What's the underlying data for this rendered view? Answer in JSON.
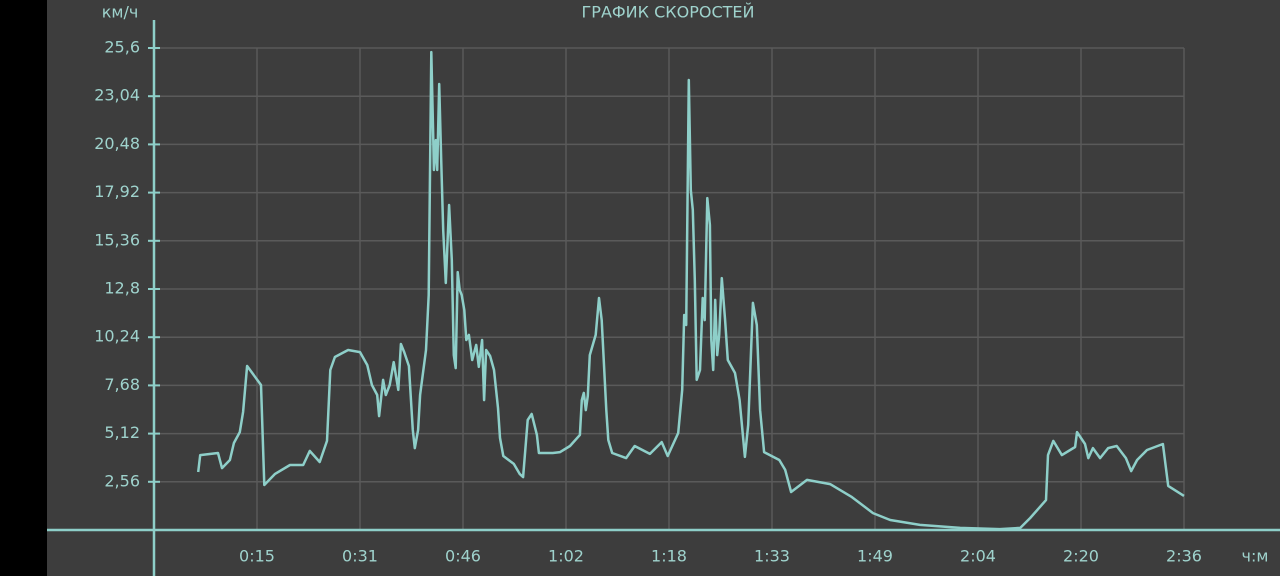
{
  "chart_data": {
    "type": "line",
    "title": "ГРАФИК СКОРОСТЕЙ",
    "y_label": "км/ч",
    "x_label": "ч:м",
    "color": "#8ecfc9",
    "grid": true,
    "xlim": [
      0,
      156
    ],
    "ylim": [
      0,
      25.6
    ],
    "xticks": [
      {
        "value": 15.6,
        "label": "0:15"
      },
      {
        "value": 31.2,
        "label": "0:31"
      },
      {
        "value": 46.8,
        "label": "0:46"
      },
      {
        "value": 62.4,
        "label": "1:02"
      },
      {
        "value": 78,
        "label": "1:18"
      },
      {
        "value": 93.6,
        "label": "1:33"
      },
      {
        "value": 109.2,
        "label": "1:49"
      },
      {
        "value": 124.8,
        "label": "2:04"
      },
      {
        "value": 140.4,
        "label": "2:20"
      },
      {
        "value": 156,
        "label": "2:36"
      }
    ],
    "yticks": [
      {
        "value": 2.56,
        "label": "2,56"
      },
      {
        "value": 5.12,
        "label": "5,12"
      },
      {
        "value": 7.68,
        "label": "7,68"
      },
      {
        "value": 10.24,
        "label": "10,24"
      },
      {
        "value": 12.8,
        "label": "12,8"
      },
      {
        "value": 15.36,
        "label": "15,36"
      },
      {
        "value": 17.92,
        "label": "17,92"
      },
      {
        "value": 20.48,
        "label": "20,48"
      },
      {
        "value": 23.04,
        "label": "23,04"
      },
      {
        "value": 25.6,
        "label": "25,6"
      }
    ],
    "x": [
      6.7,
      7.0,
      9.7,
      10.3,
      11.5,
      12.1,
      13.0,
      13.5,
      14.1,
      16.2,
      16.7,
      18.3,
      20.6,
      22.6,
      23.6,
      25.1,
      26.2,
      26.7,
      27.4,
      29.4,
      31.2,
      32.3,
      33.0,
      33.8,
      34.1,
      34.7,
      35.1,
      35.7,
      36.3,
      37.0,
      37.4,
      37.9,
      38.6,
      39.2,
      39.5,
      40.0,
      40.3,
      41.2,
      41.6,
      42.0,
      42.3,
      42.4,
      42.7,
      42.9,
      43.2,
      43.5,
      43.8,
      44.2,
      44.7,
      45.1,
      45.4,
      45.7,
      46.0,
      46.3,
      46.6,
      47.0,
      47.3,
      47.7,
      48.2,
      48.8,
      49.2,
      49.7,
      50.0,
      50.3,
      50.9,
      51.5,
      52.1,
      52.4,
      52.9,
      54.5,
      55.4,
      55.9,
      56.6,
      57.2,
      58.0,
      58.3,
      60.4,
      61.5,
      63.0,
      64.5,
      64.8,
      65.1,
      65.4,
      65.7,
      66.0,
      66.9,
      67.4,
      67.8,
      68.5,
      68.8,
      69.4,
      71.5,
      72.8,
      75.1,
      76.9,
      77.8,
      79.4,
      80.0,
      80.3,
      80.6,
      81.0,
      81.3,
      81.6,
      81.9,
      82.2,
      82.7,
      83.1,
      83.4,
      83.8,
      84.2,
      84.4,
      84.7,
      85.0,
      85.3,
      85.6,
      86.0,
      86.5,
      86.9,
      88.0,
      88.7,
      89.5,
      90.0,
      90.7,
      91.3,
      91.8,
      92.4,
      94.7,
      95.6,
      96.5,
      98.9,
      102.4,
      105.7,
      108.9,
      111.5,
      116.0,
      122.1,
      128.1,
      131.2,
      132.7,
      135.1,
      135.4,
      136.2,
      137.5,
      139.5,
      139.8,
      141.0,
      141.5,
      142.2,
      143.3,
      144.5,
      145.8,
      147.2,
      148.0,
      148.9,
      150.4,
      152.8,
      153.6,
      156.0
    ],
    "values": [
      3.08,
      3.98,
      4.09,
      3.29,
      3.72,
      4.62,
      5.2,
      6.27,
      8.71,
      7.7,
      2.39,
      2.97,
      3.45,
      3.45,
      4.2,
      3.61,
      4.73,
      8.5,
      9.19,
      9.56,
      9.45,
      8.76,
      7.7,
      7.17,
      6.05,
      7.97,
      7.17,
      7.7,
      8.92,
      7.44,
      9.88,
      9.45,
      8.71,
      5.31,
      4.35,
      5.31,
      7.17,
      9.56,
      12.48,
      25.38,
      20.71,
      19.12,
      20.71,
      19.12,
      23.69,
      19.65,
      15.93,
      13.12,
      17.26,
      14.34,
      9.29,
      8.6,
      13.7,
      12.75,
      12.48,
      11.68,
      10.09,
      10.36,
      9.03,
      9.83,
      8.66,
      10.09,
      6.9,
      9.56,
      9.24,
      8.5,
      6.48,
      4.89,
      3.93,
      3.51,
      2.97,
      2.81,
      5.84,
      6.16,
      5.05,
      4.09,
      4.09,
      4.14,
      4.46,
      5.05,
      6.9,
      7.28,
      6.37,
      7.12,
      9.29,
      10.36,
      12.32,
      11.15,
      6.37,
      4.78,
      4.09,
      3.82,
      4.46,
      4.04,
      4.67,
      3.93,
      5.15,
      7.44,
      11.42,
      10.89,
      23.9,
      18.06,
      17.0,
      13.28,
      7.97,
      8.5,
      12.32,
      11.15,
      17.63,
      16.2,
      10.09,
      8.5,
      12.22,
      9.29,
      10.36,
      13.38,
      11.15,
      9.03,
      8.34,
      6.9,
      3.88,
      5.58,
      12.06,
      10.89,
      6.37,
      4.14,
      3.72,
      3.19,
      2.02,
      2.66,
      2.44,
      1.75,
      0.9,
      0.53,
      0.27,
      0.11,
      0.05,
      0.11,
      0.64,
      1.59,
      3.98,
      4.73,
      3.98,
      4.41,
      5.2,
      4.57,
      3.82,
      4.35,
      3.82,
      4.35,
      4.46,
      3.82,
      3.13,
      3.72,
      4.25,
      4.57,
      2.34,
      1.81
    ]
  }
}
